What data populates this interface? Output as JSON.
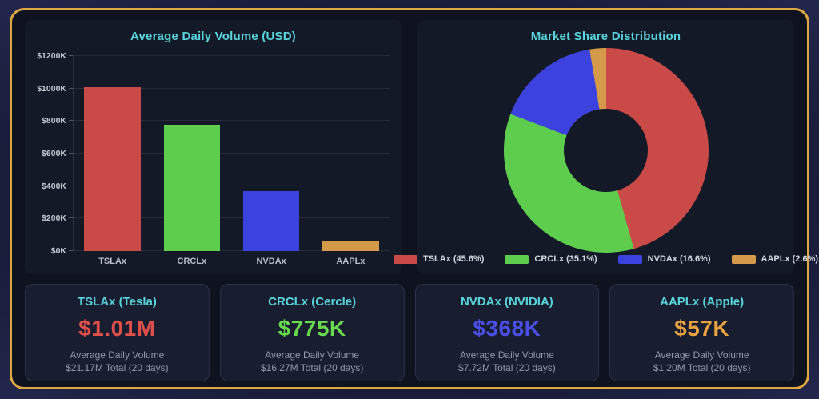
{
  "theme": {
    "frame_border": "#dda742",
    "panel_bg": "#141927",
    "title_color": "#58d5dc",
    "grid_color": "rgba(255,255,255,0.08)"
  },
  "chart_data": [
    {
      "type": "bar",
      "title": "Average Daily Volume (USD)",
      "categories": [
        "TSLAx",
        "CRCLx",
        "NVDAx",
        "AAPLx"
      ],
      "values": [
        1010,
        775,
        368,
        57
      ],
      "unit": "thousand USD",
      "colors": [
        "#c94a46",
        "#5ecd4d",
        "#3c42dd",
        "#d49a4a"
      ],
      "ylim": [
        0,
        1200
      ],
      "yticks": [
        "$0K",
        "$200K",
        "$400K",
        "$600K",
        "$800K",
        "$1000K",
        "$1200K"
      ],
      "grid": true,
      "legend": false
    },
    {
      "type": "pie",
      "donut": true,
      "title": "Market Share Distribution",
      "labels": [
        "TSLAx",
        "CRCLx",
        "NVDAx",
        "AAPLx"
      ],
      "values": [
        45.6,
        35.1,
        16.6,
        2.6
      ],
      "legend_labels": [
        "TSLAx (45.6%)",
        "CRCLx (35.1%)",
        "NVDAx (16.6%)",
        "AAPLx (2.6%)"
      ],
      "colors": [
        "#c94a46",
        "#5ecd4d",
        "#3c42dd",
        "#d49a4a"
      ],
      "legend_position": "bottom",
      "start_angle": "top",
      "direction": "clockwise"
    }
  ],
  "cards": [
    {
      "title": "TSLAx (Tesla)",
      "value": "$1.01M",
      "value_color": "#e0504b",
      "line1": "Average Daily Volume",
      "line2": "$21.17M Total (20 days)"
    },
    {
      "title": "CRCLx (Cercle)",
      "value": "$775K",
      "value_color": "#67da4e",
      "line1": "Average Daily Volume",
      "line2": "$16.27M Total (20 days)"
    },
    {
      "title": "NVDAx (NVIDIA)",
      "value": "$368K",
      "value_color": "#4a4fe8",
      "line1": "Average Daily Volume",
      "line2": "$7.72M Total (20 days)"
    },
    {
      "title": "AAPLx (Apple)",
      "value": "$57K",
      "value_color": "#eaa23f",
      "line1": "Average Daily Volume",
      "line2": "$1.20M Total (20 days)"
    }
  ]
}
